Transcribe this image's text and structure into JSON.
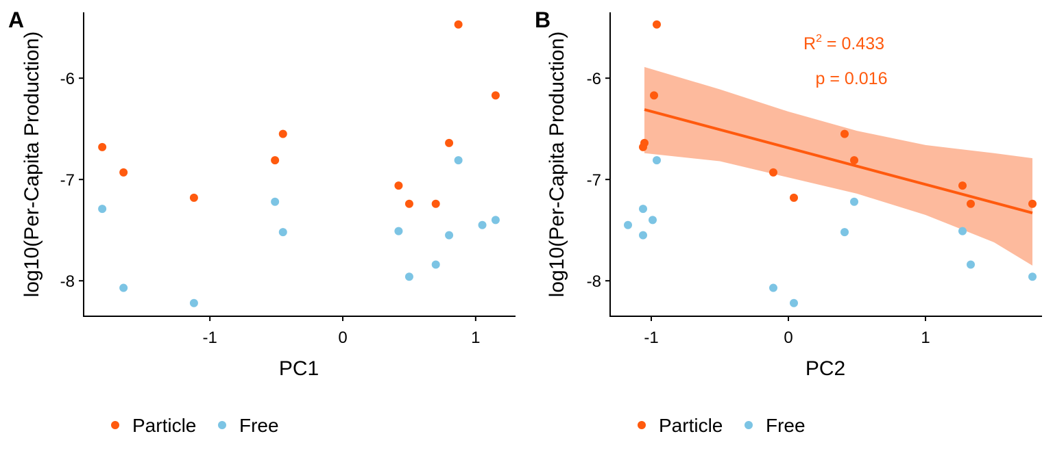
{
  "figure": {
    "colors": {
      "particle": "#FF5A0E",
      "free": "#7CC4E4",
      "ribbon": "#FDBA9D",
      "overlap": "#A09A96"
    },
    "legend": {
      "position": "bottom",
      "entries": [
        {
          "label": "Particle",
          "color": "#FF5A0E"
        },
        {
          "label": "Free",
          "color": "#7CC4E4"
        }
      ]
    }
  },
  "chart_data": [
    {
      "type": "scatter",
      "panel_label": "A",
      "xlabel": "PC1",
      "ylabel": "log10(Per-Capita Production)",
      "xlim": [
        -1.95,
        1.3
      ],
      "ylim": [
        -8.35,
        -5.35
      ],
      "xticks": [
        -1,
        0,
        1
      ],
      "yticks": [
        -6,
        -7,
        -8
      ],
      "grid": false,
      "series": [
        {
          "name": "Particle",
          "color": "#FF5A0E",
          "points": [
            [
              -1.81,
              -6.68
            ],
            [
              -1.65,
              -6.93
            ],
            [
              -1.12,
              -7.18
            ],
            [
              -0.51,
              -6.81
            ],
            [
              -0.45,
              -6.55
            ],
            [
              0.42,
              -7.06
            ],
            [
              0.5,
              -7.24
            ],
            [
              0.7,
              -7.24
            ],
            [
              0.8,
              -6.64
            ],
            [
              0.87,
              -5.47
            ],
            [
              1.15,
              -6.17
            ]
          ]
        },
        {
          "name": "Free",
          "color": "#7CC4E4",
          "points": [
            [
              -1.81,
              -7.29
            ],
            [
              -1.65,
              -8.07
            ],
            [
              -1.12,
              -8.22
            ],
            [
              -0.51,
              -7.22
            ],
            [
              -0.45,
              -7.52
            ],
            [
              0.42,
              -7.51
            ],
            [
              0.5,
              -7.96
            ],
            [
              0.7,
              -7.84
            ],
            [
              0.8,
              -7.55
            ],
            [
              0.87,
              -6.81
            ],
            [
              1.05,
              -7.45
            ],
            [
              1.15,
              -7.4
            ]
          ]
        }
      ]
    },
    {
      "type": "scatter",
      "panel_label": "B",
      "xlabel": "PC2",
      "ylabel": "log10(Per-Capita Production)",
      "xlim": [
        -1.3,
        1.85
      ],
      "ylim": [
        -8.35,
        -5.35
      ],
      "xticks": [
        -1,
        0,
        1
      ],
      "yticks": [
        -6,
        -7,
        -8
      ],
      "grid": false,
      "annotation": {
        "r2_label": "R",
        "r2_sup": "2",
        "r2_value": " = 0.433",
        "p_text": "p = 0.016"
      },
      "fit": {
        "x": [
          -1.05,
          1.78
        ],
        "y": [
          -6.31,
          -7.33
        ],
        "band": [
          [
            -1.05,
            -5.89,
            -6.74
          ],
          [
            -0.5,
            -6.11,
            -6.82
          ],
          [
            0.0,
            -6.33,
            -6.98
          ],
          [
            0.5,
            -6.52,
            -7.14
          ],
          [
            1.0,
            -6.66,
            -7.35
          ],
          [
            1.5,
            -6.74,
            -7.62
          ],
          [
            1.78,
            -6.79,
            -7.85
          ]
        ]
      },
      "series": [
        {
          "name": "Particle",
          "color": "#FF5A0E",
          "points": [
            [
              -0.96,
              -5.47
            ],
            [
              -0.98,
              -6.17
            ],
            [
              -1.05,
              -6.64
            ],
            [
              -1.06,
              -6.68
            ],
            [
              -0.11,
              -6.93
            ],
            [
              0.04,
              -7.18
            ],
            [
              0.41,
              -6.55
            ],
            [
              0.48,
              -6.81
            ],
            [
              1.27,
              -7.06
            ],
            [
              1.33,
              -7.24
            ],
            [
              1.78,
              -7.24
            ]
          ]
        },
        {
          "name": "Free",
          "color": "#7CC4E4",
          "points": [
            [
              -1.17,
              -7.45
            ],
            [
              -1.06,
              -7.29
            ],
            [
              -1.06,
              -7.55
            ],
            [
              -0.99,
              -7.4
            ],
            [
              -0.96,
              -6.81
            ],
            [
              -0.11,
              -8.07
            ],
            [
              0.04,
              -8.22
            ],
            [
              0.41,
              -7.52
            ],
            [
              0.48,
              -7.22
            ],
            [
              1.27,
              -7.51
            ],
            [
              1.33,
              -7.84
            ],
            [
              1.78,
              -7.96
            ]
          ]
        }
      ]
    }
  ]
}
